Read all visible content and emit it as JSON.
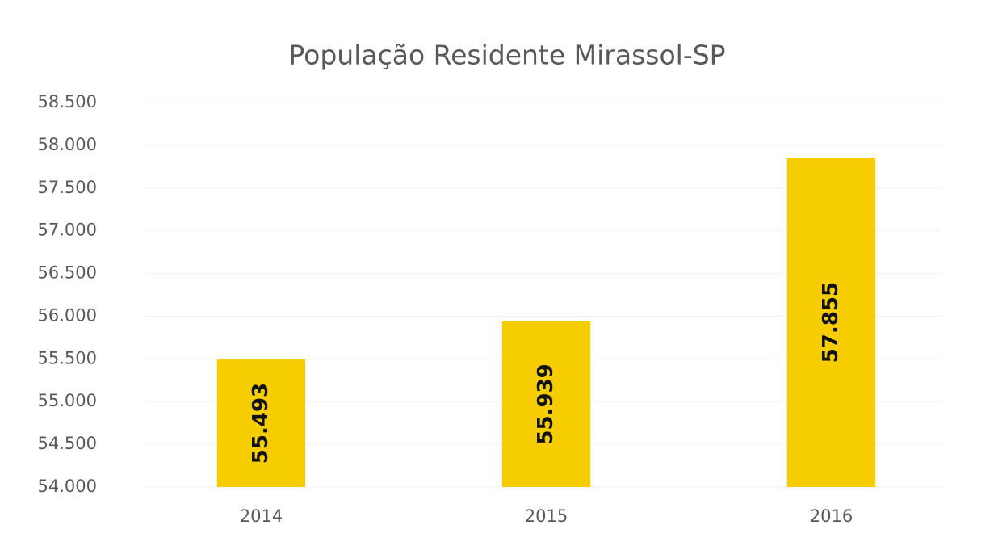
{
  "chart_data": {
    "type": "bar",
    "title": "População Residente Mirassol-SP",
    "categories": [
      "2014",
      "2015",
      "2016"
    ],
    "values": [
      55493,
      55939,
      57855
    ],
    "value_labels": [
      "55.493",
      "55.939",
      "57.855"
    ],
    "color": "#f5cd00",
    "ylim": [
      54000,
      58500
    ],
    "yticks": [
      {
        "value": 54000,
        "label": "54.000"
      },
      {
        "value": 54500,
        "label": "54.500"
      },
      {
        "value": 55000,
        "label": "55.000"
      },
      {
        "value": 55500,
        "label": "55.500"
      },
      {
        "value": 56000,
        "label": "56.000"
      },
      {
        "value": 56500,
        "label": "56.500"
      },
      {
        "value": 57000,
        "label": "57.000"
      },
      {
        "value": 57500,
        "label": "57.500"
      },
      {
        "value": 58000,
        "label": "58.000"
      },
      {
        "value": 58500,
        "label": "58.500"
      }
    ],
    "grid": true
  }
}
